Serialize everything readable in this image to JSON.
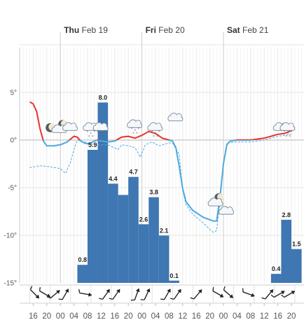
{
  "chart_data": {
    "type": "bar",
    "title": "",
    "days": [
      {
        "bold": "Thu",
        "rest": "Feb 19",
        "hour": 24
      },
      {
        "bold": "Fri",
        "rest": "Feb 20",
        "hour": 48
      },
      {
        "bold": "Sat",
        "rest": "Feb 21",
        "hour": 72
      }
    ],
    "x_hour_ticks": [
      16,
      20,
      0,
      4,
      8,
      12,
      16,
      20,
      0,
      4,
      8,
      12,
      16,
      20,
      0,
      4,
      8,
      12,
      16,
      20,
      0
    ],
    "y_ticks": [
      "5°",
      "0°",
      "-5°",
      "-10°",
      "-15°"
    ],
    "y_tick_values": [
      5,
      0,
      -5,
      -10,
      -15
    ],
    "ylim": [
      -15,
      10
    ],
    "precipitation": {
      "name": "Precipitation",
      "color": "#3e77b2",
      "bars": [
        {
          "start": 29,
          "value": 0.8,
          "label": "0.8"
        },
        {
          "start": 32,
          "value": 5.9,
          "label": "5.9"
        },
        {
          "start": 35,
          "value": 8.0,
          "label": "8.0"
        },
        {
          "start": 38,
          "value": 4.4,
          "label": "4.4"
        },
        {
          "start": 41,
          "value": 3.9,
          "label": ""
        },
        {
          "start": 44,
          "value": 4.7,
          "label": "4.7"
        },
        {
          "start": 47,
          "value": 2.6,
          "label": "2.6"
        },
        {
          "start": 50,
          "value": 3.8,
          "label": "3.8"
        },
        {
          "start": 53,
          "value": 2.1,
          "label": "2.1"
        },
        {
          "start": 56,
          "value": 0.1,
          "label": "0.1"
        },
        {
          "start": 86,
          "value": 0.4,
          "label": "0.4"
        },
        {
          "start": 89,
          "value": 2.8,
          "label": "2.8"
        },
        {
          "start": 92,
          "value": 1.5,
          "label": "1.5"
        }
      ]
    },
    "temperature": {
      "name": "Temperature",
      "warm_color": "#e8332b",
      "cold_color": "#4ca9e0",
      "points": [
        [
          15,
          4
        ],
        [
          16,
          3.8
        ],
        [
          17,
          3
        ],
        [
          18,
          1.2
        ],
        [
          19,
          -0.1
        ],
        [
          20,
          -0.6
        ],
        [
          22,
          -0.6
        ],
        [
          24,
          -0.5
        ],
        [
          26,
          -0.2
        ],
        [
          27,
          0.1
        ],
        [
          28,
          0.4
        ],
        [
          29,
          0.3
        ],
        [
          30,
          -0.1
        ],
        [
          31,
          -0.3
        ],
        [
          32,
          -0.4
        ],
        [
          33,
          -0.3
        ],
        [
          34,
          -0.1
        ],
        [
          35,
          0
        ],
        [
          36,
          -0.1
        ],
        [
          38,
          -0.2
        ],
        [
          40,
          -0.1
        ],
        [
          42,
          0.3
        ],
        [
          44,
          0.4
        ],
        [
          46,
          0.2
        ],
        [
          48,
          0.5
        ],
        [
          50,
          0.9
        ],
        [
          52,
          0.7
        ],
        [
          54,
          0.2
        ],
        [
          56,
          0
        ],
        [
          57,
          -0.1
        ],
        [
          58,
          -0.8
        ],
        [
          59,
          -2.8
        ],
        [
          60,
          -5.1
        ],
        [
          61,
          -6.5
        ],
        [
          63,
          -7.4
        ],
        [
          66,
          -8.1
        ],
        [
          69,
          -8.5
        ],
        [
          70,
          -8.5
        ],
        [
          71,
          -6
        ],
        [
          72,
          -2.5
        ],
        [
          73,
          -0.5
        ],
        [
          74,
          -0.1
        ],
        [
          76,
          0
        ],
        [
          78,
          0
        ],
        [
          80,
          0
        ],
        [
          82,
          0.1
        ],
        [
          84,
          0.2
        ],
        [
          86,
          0.4
        ],
        [
          88,
          0.6
        ],
        [
          90,
          0.7
        ],
        [
          92,
          1
        ]
      ]
    },
    "feels_like": {
      "name": "Feels like",
      "color": "#4ca9e0",
      "points": [
        [
          15,
          -2.9
        ],
        [
          18,
          -2.7
        ],
        [
          21,
          -2.8
        ],
        [
          24,
          -3
        ],
        [
          25.5,
          -3.5
        ],
        [
          27,
          -2.3
        ],
        [
          28,
          -1
        ],
        [
          29,
          0
        ],
        [
          31,
          -0.2
        ],
        [
          34,
          -0.5
        ],
        [
          38,
          -0.5
        ],
        [
          41,
          -1
        ],
        [
          42,
          -0.5
        ],
        [
          44,
          -0.6
        ],
        [
          46,
          -0.8
        ],
        [
          47.5,
          -1.8
        ],
        [
          49,
          -0.5
        ],
        [
          51,
          -0.2
        ],
        [
          53,
          -0.6
        ],
        [
          56,
          -0.3
        ],
        [
          57,
          -0.3
        ],
        [
          59,
          -1.5
        ],
        [
          60,
          -5.3
        ],
        [
          61,
          -6.8
        ],
        [
          63,
          -7.8
        ],
        [
          66,
          -8.7
        ],
        [
          69,
          -9.7
        ],
        [
          70,
          -9.5
        ],
        [
          71,
          -6.5
        ],
        [
          72,
          -2.3
        ],
        [
          73,
          -0.3
        ],
        [
          76,
          -0.2
        ],
        [
          80,
          -0.2
        ],
        [
          84,
          0
        ],
        [
          88,
          0.4
        ],
        [
          92,
          0.6
        ]
      ]
    },
    "weather_icons": [
      {
        "hour": 21,
        "temp": 1.3,
        "icon": "moon-icon",
        "snow": false
      },
      {
        "hour": 24,
        "temp": 1.3,
        "icon": "cloudy-moon-icon",
        "snow": false
      },
      {
        "hour": 27,
        "temp": 1.3,
        "icon": "cloud-icon",
        "snow": false
      },
      {
        "hour": 33,
        "temp": 1.3,
        "icon": "snow-cloud-icon",
        "snow": true
      },
      {
        "hour": 36,
        "temp": 1.3,
        "icon": "snow-cloud-icon",
        "snow": true
      },
      {
        "hour": 46,
        "temp": 1.6,
        "icon": "snow-cloud-icon",
        "snow": true
      },
      {
        "hour": 52,
        "temp": 1.3,
        "icon": "snow-cloud-icon",
        "snow": true
      },
      {
        "hour": 58,
        "temp": 2.3,
        "icon": "cloud-icon",
        "snow": false
      },
      {
        "hour": 70,
        "temp": -6.4,
        "icon": "cloudy-moon-icon",
        "snow": false
      },
      {
        "hour": 73,
        "temp": -7.5,
        "icon": "cloud-icon",
        "snow": false
      },
      {
        "hour": 89,
        "temp": 1.3,
        "icon": "cloud-icon",
        "snow": false
      },
      {
        "hour": 91,
        "temp": 1.3,
        "icon": "snow-cloud-icon",
        "snow": true
      }
    ],
    "wind_arrows": [
      {
        "hour": 15,
        "dir": 135,
        "icon": "wind-arrow-icon"
      },
      {
        "hour": 18,
        "dir": 120,
        "icon": "wind-arrow-icon"
      },
      {
        "hour": 21,
        "dir": 50,
        "icon": "wind-arrow-icon"
      },
      {
        "hour": 24,
        "dir": 30,
        "icon": "wind-arrow-icon"
      },
      {
        "hour": 30,
        "dir": 100,
        "icon": "wind-arrow-icon"
      },
      {
        "hour": 36,
        "dir": 35,
        "icon": "wind-arrow-icon"
      },
      {
        "hour": 39,
        "dir": 35,
        "icon": "wind-arrow-icon"
      },
      {
        "hour": 45,
        "dir": 20,
        "icon": "wind-arrow-icon"
      },
      {
        "hour": 48,
        "dir": 25,
        "icon": "wind-arrow-icon"
      },
      {
        "hour": 54,
        "dir": 30,
        "icon": "wind-arrow-icon"
      },
      {
        "hour": 57,
        "dir": 35,
        "icon": "wind-arrow-icon"
      },
      {
        "hour": 63,
        "dir": 40,
        "icon": "wind-arrow-icon"
      },
      {
        "hour": 69,
        "dir": 120,
        "icon": "wind-arrow-icon"
      },
      {
        "hour": 72,
        "dir": 130,
        "icon": "wind-arrow-icon"
      },
      {
        "hour": 78,
        "dir": 110,
        "icon": "wind-arrow-icon"
      },
      {
        "hour": 84,
        "dir": 40,
        "icon": "wind-arrow-icon"
      },
      {
        "hour": 87,
        "dir": 60,
        "icon": "wind-arrow-icon"
      },
      {
        "hour": 90,
        "dir": 60,
        "icon": "wind-arrow-icon"
      }
    ],
    "grid": true,
    "legend": "none"
  }
}
